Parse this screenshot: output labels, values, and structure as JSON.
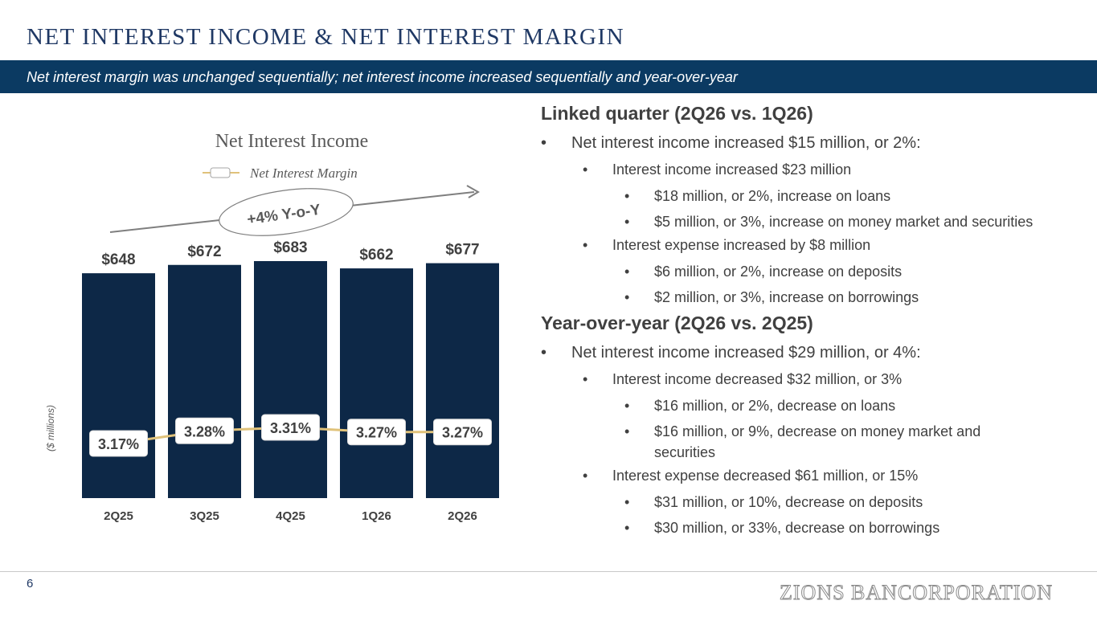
{
  "title": "NET INTEREST INCOME & NET INTEREST MARGIN",
  "subtitle": "Net interest margin was unchanged sequentially; net interest income increased sequentially and year-over-year",
  "chart_data": {
    "type": "bar",
    "title": "Net Interest Income",
    "ylabel": "($ millions)",
    "categories": [
      "2Q25",
      "3Q25",
      "4Q25",
      "1Q26",
      "2Q26"
    ],
    "series": [
      {
        "name": "Net Interest Income",
        "type": "bar",
        "values": [
          648,
          672,
          683,
          662,
          677
        ],
        "labels": [
          "$648",
          "$672",
          "$683",
          "$662",
          "$677"
        ]
      },
      {
        "name": "Net Interest Margin",
        "type": "line",
        "values": [
          3.17,
          3.28,
          3.31,
          3.27,
          3.27
        ],
        "labels": [
          "3.17%",
          "3.28%",
          "3.31%",
          "3.27%",
          "3.27%"
        ]
      }
    ],
    "annotation": "+4% Y-o-Y",
    "colors": {
      "bar": "#0d2847",
      "line": "#e0c27a",
      "arrow": "#7f7f7f"
    }
  },
  "right": {
    "linked": {
      "heading": "Linked quarter (2Q26 vs. 1Q26)",
      "items": [
        {
          "level": 1,
          "text": "Net interest income increased $15 million, or 2%:"
        },
        {
          "level": 2,
          "text": "Interest income increased $23 million"
        },
        {
          "level": 3,
          "text": "$18 million, or 2%, increase on loans"
        },
        {
          "level": 3,
          "text": "$5 million, or 3%, increase on money market and securities"
        },
        {
          "level": 2,
          "text": "Interest expense increased by $8 million"
        },
        {
          "level": 3,
          "text": "$6 million, or 2%, increase on deposits"
        },
        {
          "level": 3,
          "text": "$2 million, or 3%, increase on borrowings"
        }
      ]
    },
    "yoy": {
      "heading": "Year-over-year (2Q26 vs. 2Q25)",
      "items": [
        {
          "level": 1,
          "text": "Net interest income increased $29 million, or 4%:"
        },
        {
          "level": 2,
          "text": "Interest income decreased $32 million, or 3%"
        },
        {
          "level": 3,
          "text": "$16 million, or 2%, decrease on loans"
        },
        {
          "level": 3,
          "text": "$16 million, or 9%, decrease on money market and securities"
        },
        {
          "level": 2,
          "text": "Interest expense decreased $61 million, or 15%"
        },
        {
          "level": 3,
          "text": "$31 million, or 10%, decrease on deposits"
        },
        {
          "level": 3,
          "text": "$30 million, or 33%, decrease on borrowings"
        }
      ]
    }
  },
  "footer": {
    "page": "6",
    "logo": "ZIONS BANCORPORATION"
  }
}
